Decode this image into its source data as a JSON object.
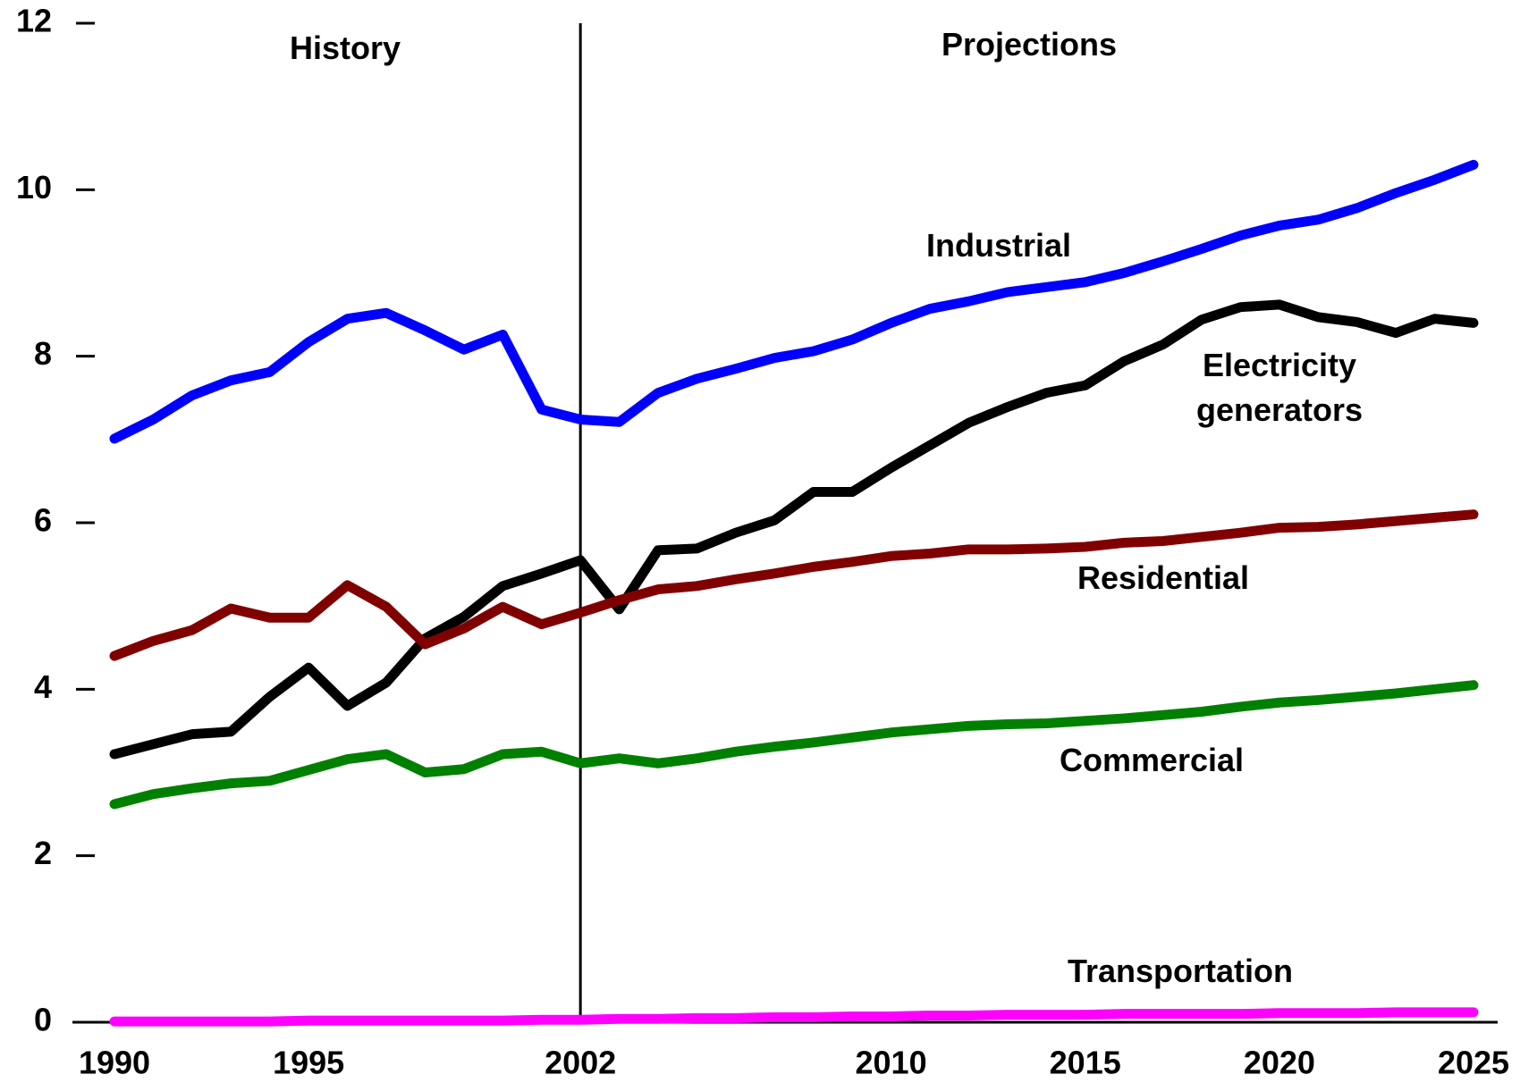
{
  "chart_data": {
    "type": "line",
    "x": [
      1990,
      1991,
      1992,
      1993,
      1994,
      1995,
      1996,
      1997,
      1998,
      1999,
      2000,
      2001,
      2002,
      2003,
      2004,
      2005,
      2006,
      2007,
      2008,
      2009,
      2010,
      2011,
      2012,
      2013,
      2014,
      2015,
      2016,
      2017,
      2018,
      2019,
      2020,
      2021,
      2022,
      2023,
      2024,
      2025
    ],
    "series": [
      {
        "name": "Industrial",
        "color": "#0000ff",
        "values": [
          7.01,
          7.24,
          7.53,
          7.71,
          7.81,
          8.17,
          8.45,
          8.52,
          8.31,
          8.08,
          8.26,
          7.36,
          7.24,
          7.21,
          7.56,
          7.73,
          7.85,
          7.98,
          8.06,
          8.2,
          8.4,
          8.57,
          8.66,
          8.77,
          8.83,
          8.89,
          9.0,
          9.14,
          9.29,
          9.45,
          9.57,
          9.64,
          9.78,
          9.96,
          10.12,
          10.3
        ]
      },
      {
        "name": "Electricity generators",
        "color": "#000000",
        "values": [
          3.22,
          3.34,
          3.46,
          3.49,
          3.91,
          4.26,
          3.8,
          4.08,
          4.61,
          4.87,
          5.24,
          5.39,
          5.55,
          4.96,
          5.67,
          5.69,
          5.88,
          6.03,
          6.37,
          6.37,
          6.66,
          6.93,
          7.2,
          7.39,
          7.56,
          7.65,
          7.94,
          8.14,
          8.44,
          8.59,
          8.62,
          8.47,
          8.41,
          8.28,
          8.45,
          8.4
        ]
      },
      {
        "name": "Residential",
        "color": "#800000",
        "values": [
          4.4,
          4.58,
          4.71,
          4.97,
          4.86,
          4.86,
          5.25,
          4.99,
          4.54,
          4.73,
          4.99,
          4.78,
          4.92,
          5.07,
          5.2,
          5.24,
          5.32,
          5.39,
          5.47,
          5.53,
          5.6,
          5.63,
          5.68,
          5.68,
          5.69,
          5.71,
          5.76,
          5.78,
          5.83,
          5.88,
          5.94,
          5.95,
          5.98,
          6.02,
          6.06,
          6.1
        ]
      },
      {
        "name": "Commercial",
        "color": "#008000",
        "values": [
          2.62,
          2.74,
          2.81,
          2.87,
          2.9,
          3.03,
          3.16,
          3.22,
          3.0,
          3.04,
          3.22,
          3.25,
          3.11,
          3.17,
          3.11,
          3.17,
          3.25,
          3.31,
          3.36,
          3.42,
          3.48,
          3.52,
          3.56,
          3.58,
          3.59,
          3.62,
          3.65,
          3.69,
          3.73,
          3.79,
          3.84,
          3.87,
          3.91,
          3.95,
          4.0,
          4.05
        ]
      },
      {
        "name": "Transportation",
        "color": "#ff00ff",
        "values": [
          0.01,
          0.01,
          0.01,
          0.01,
          0.01,
          0.02,
          0.02,
          0.02,
          0.02,
          0.02,
          0.02,
          0.03,
          0.03,
          0.04,
          0.04,
          0.05,
          0.05,
          0.06,
          0.06,
          0.07,
          0.07,
          0.08,
          0.08,
          0.09,
          0.09,
          0.09,
          0.1,
          0.1,
          0.1,
          0.1,
          0.11,
          0.11,
          0.11,
          0.12,
          0.12,
          0.12
        ]
      }
    ],
    "annotations": [
      "History",
      "Projections"
    ],
    "divider": 2002,
    "xlim": [
      1990,
      2025
    ],
    "xticks": [
      1990,
      1995,
      2002,
      2010,
      2015,
      2020,
      2025
    ],
    "ylim": [
      0,
      12
    ],
    "yticks": [
      0,
      2,
      4,
      6,
      8,
      10,
      12
    ]
  }
}
